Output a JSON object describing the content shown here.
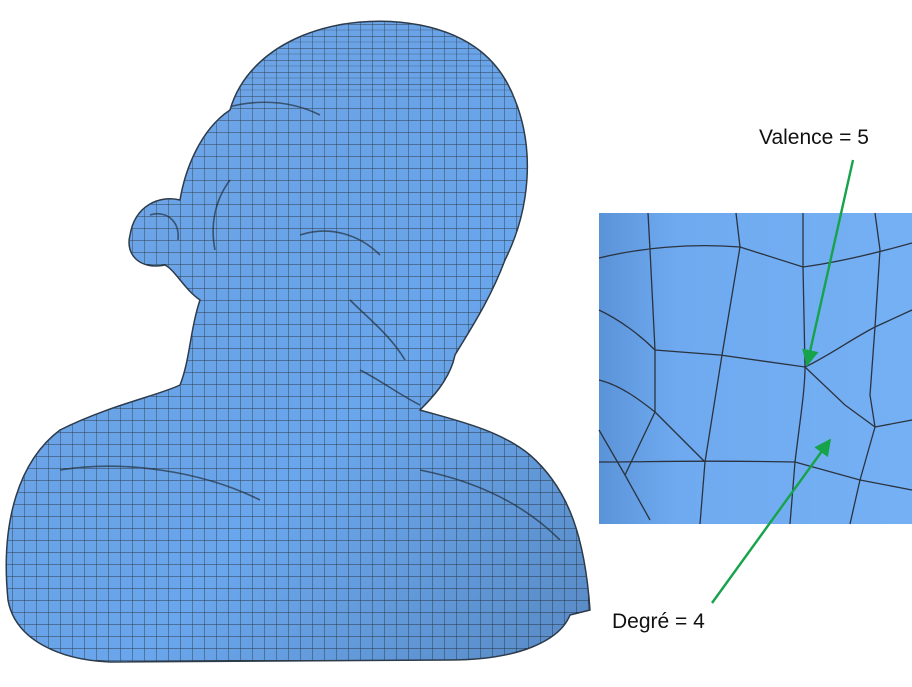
{
  "colors": {
    "mesh_fill": "#6aa6ec",
    "mesh_line": "#2d3b4a",
    "arrow": "#16a34a",
    "background": "#ffffff"
  },
  "annotations": {
    "valence_label": "Valence = 5",
    "degree_label": "Degré = 4"
  }
}
